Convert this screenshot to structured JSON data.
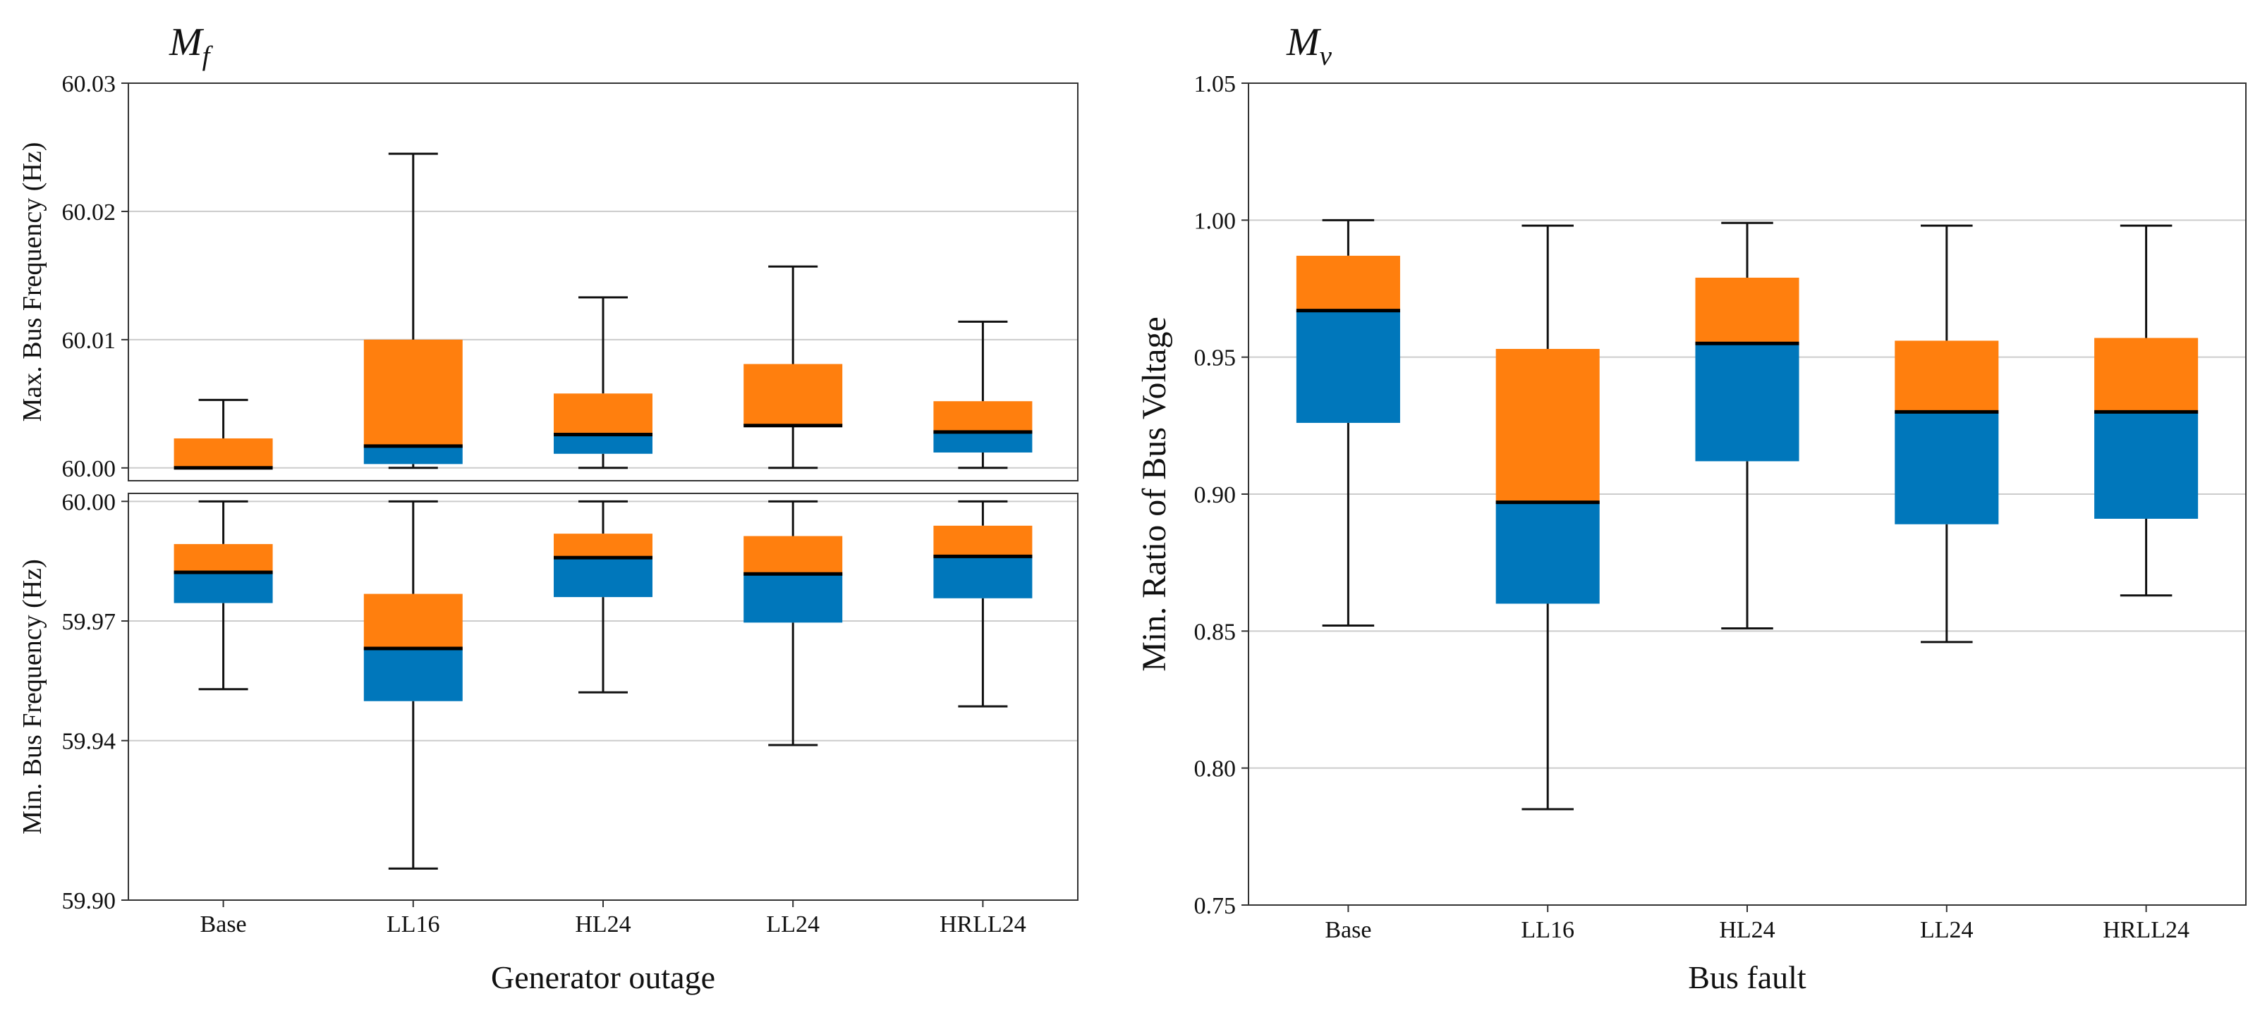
{
  "colors": {
    "upper_box": "#ff7f0e",
    "lower_box": "#0077bb",
    "grid": "#cccccc"
  },
  "chart_data": [
    {
      "id": "max-freq",
      "type": "boxplot",
      "title": "M",
      "title_subscript": "f",
      "xlabel": "",
      "ylabel": "Max. Bus Frequency (Hz)",
      "ylim": [
        59.999,
        60.03
      ],
      "yticks": [
        60.0,
        60.01,
        60.02,
        60.03
      ],
      "ytick_labels": [
        "60.00",
        "60.01",
        "60.02",
        "60.03"
      ],
      "grid": "horizontal",
      "categories": [
        "Base",
        "LL16",
        "HL24",
        "LL24",
        "HRLL24"
      ],
      "boxes": [
        {
          "whislo": 60.0,
          "q1": 60.0,
          "med": 60.0,
          "q3": 60.0023,
          "whishi": 60.0053
        },
        {
          "whislo": 60.0,
          "q1": 60.0003,
          "med": 60.0017,
          "q3": 60.01,
          "whishi": 60.0245
        },
        {
          "whislo": 60.0,
          "q1": 60.0011,
          "med": 60.0026,
          "q3": 60.0058,
          "whishi": 60.0133
        },
        {
          "whislo": 60.0,
          "q1": 60.0033,
          "med": 60.0033,
          "q3": 60.0081,
          "whishi": 60.0157
        },
        {
          "whislo": 60.0,
          "q1": 60.0012,
          "med": 60.0028,
          "q3": 60.0052,
          "whishi": 60.0114
        }
      ]
    },
    {
      "id": "min-freq",
      "type": "boxplot",
      "title": "",
      "xlabel": "Generator outage",
      "ylabel": "Min. Bus Frequency (Hz)",
      "ylim": [
        59.9,
        60.002
      ],
      "yticks": [
        59.9,
        59.94,
        59.97,
        60.0
      ],
      "ytick_labels": [
        "59.90",
        "59.94",
        "59.97",
        "60.00"
      ],
      "grid": "horizontal",
      "categories": [
        "Base",
        "LL16",
        "HL24",
        "LL24",
        "HRLL24"
      ],
      "boxes": [
        {
          "whislo": 59.9529,
          "q1": 59.9745,
          "med": 59.9822,
          "q3": 59.9893,
          "whishi": 60.0
        },
        {
          "whislo": 59.9079,
          "q1": 59.9499,
          "med": 59.9631,
          "q3": 59.9768,
          "whishi": 60.0
        },
        {
          "whislo": 59.9521,
          "q1": 59.976,
          "med": 59.9859,
          "q3": 59.9919,
          "whishi": 60.0
        },
        {
          "whislo": 59.9389,
          "q1": 59.9696,
          "med": 59.9818,
          "q3": 59.9913,
          "whishi": 60.0
        },
        {
          "whislo": 59.9486,
          "q1": 59.9757,
          "med": 59.9862,
          "q3": 59.9939,
          "whishi": 60.0
        }
      ]
    },
    {
      "id": "min-voltage",
      "type": "boxplot",
      "title": "M",
      "title_subscript": "v",
      "xlabel": "Bus fault",
      "ylabel": "Min. Ratio of Bus Voltage",
      "ylim": [
        0.75,
        1.05
      ],
      "yticks": [
        0.75,
        0.8,
        0.85,
        0.9,
        0.95,
        1.0,
        1.05
      ],
      "ytick_labels": [
        "0.75",
        "0.80",
        "0.85",
        "0.90",
        "0.95",
        "1.00",
        "1.05"
      ],
      "grid": "horizontal",
      "categories": [
        "Base",
        "LL16",
        "HL24",
        "LL24",
        "HRLL24"
      ],
      "boxes": [
        {
          "whislo": 0.852,
          "q1": 0.926,
          "med": 0.967,
          "q3": 0.987,
          "whishi": 1.0
        },
        {
          "whislo": 0.785,
          "q1": 0.86,
          "med": 0.897,
          "q3": 0.953,
          "whishi": 0.998
        },
        {
          "whislo": 0.851,
          "q1": 0.912,
          "med": 0.955,
          "q3": 0.979,
          "whishi": 0.999
        },
        {
          "whislo": 0.846,
          "q1": 0.889,
          "med": 0.93,
          "q3": 0.956,
          "whishi": 0.998
        },
        {
          "whislo": 0.863,
          "q1": 0.891,
          "med": 0.93,
          "q3": 0.957,
          "whishi": 0.998
        }
      ]
    }
  ]
}
